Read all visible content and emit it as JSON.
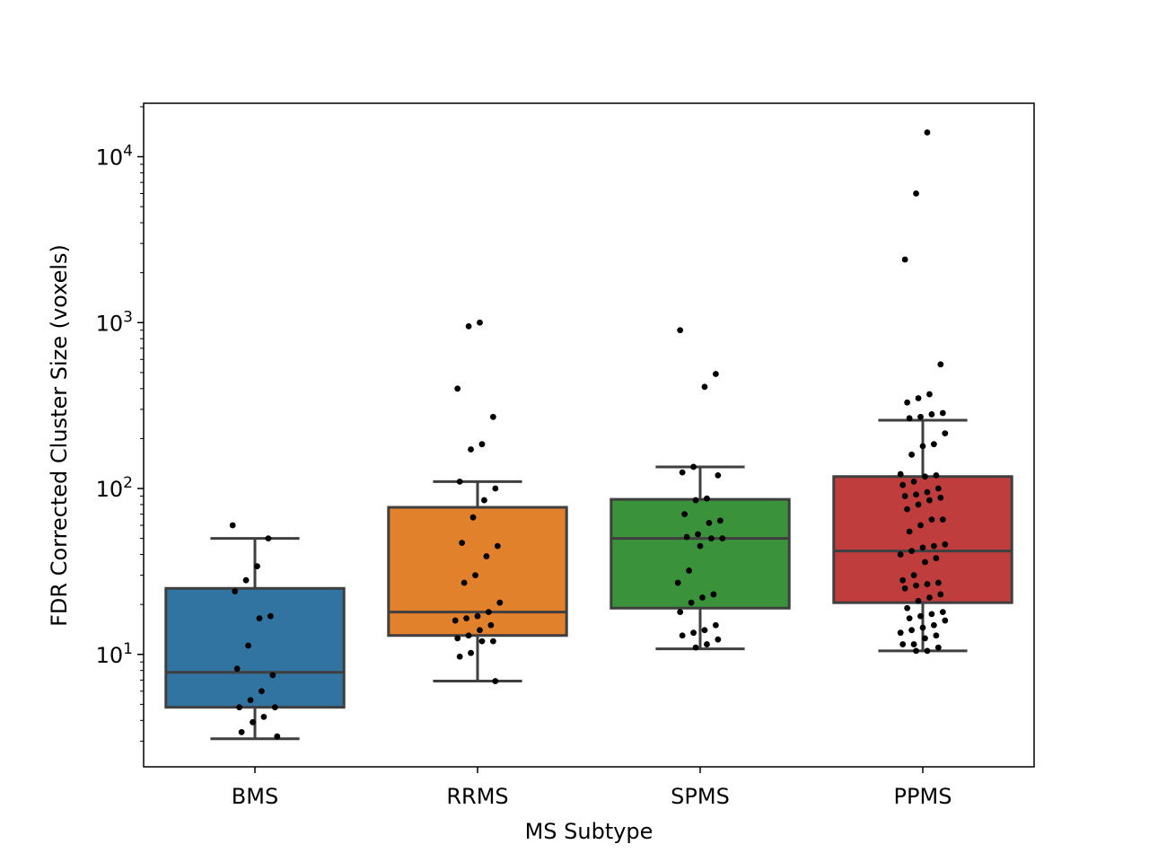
{
  "chart_data": {
    "type": "box",
    "title": "",
    "xlabel": "MS Subtype",
    "ylabel": "FDR Corrected Cluster Size (voxels)",
    "yscale": "log",
    "ylim": [
      2.1,
      21000
    ],
    "grid": false,
    "legend": "none",
    "ytick_labels": [
      {
        "value": 10,
        "base": "10",
        "exp": "1"
      },
      {
        "value": 100,
        "base": "10",
        "exp": "2"
      },
      {
        "value": 1000,
        "base": "10",
        "exp": "3"
      },
      {
        "value": 10000,
        "base": "10",
        "exp": "4"
      }
    ],
    "categories": [
      "BMS",
      "RRMS",
      "SPMS",
      "PPMS"
    ],
    "colors": [
      "#3274a1",
      "#e1812c",
      "#3a923a",
      "#c03d3e"
    ],
    "boxes": [
      {
        "name": "BMS",
        "whislo": 3.1,
        "q1": 4.8,
        "med": 7.8,
        "q3": 25,
        "whishi": 50
      },
      {
        "name": "RRMS",
        "whislo": 6.9,
        "q1": 13,
        "med": 18,
        "q3": 77,
        "whishi": 110
      },
      {
        "name": "SPMS",
        "whislo": 10.8,
        "q1": 19,
        "med": 50,
        "q3": 86,
        "whishi": 135
      },
      {
        "name": "PPMS",
        "whislo": 10.5,
        "q1": 20.5,
        "med": 42,
        "q3": 118,
        "whishi": 258
      }
    ],
    "points": [
      {
        "cat": "BMS",
        "values": [
          60,
          50,
          34,
          28,
          24,
          17,
          16.5,
          11.3,
          8.2,
          7.5,
          6.0,
          5.3,
          4.8,
          4.8,
          4.2,
          3.9,
          3.4,
          3.2
        ]
      },
      {
        "cat": "RRMS",
        "values": [
          1000,
          950,
          400,
          270,
          185,
          172,
          110,
          100,
          85,
          67,
          47,
          45,
          39,
          30,
          27,
          20.5,
          18,
          17,
          16.5,
          16,
          15,
          14,
          13,
          12.5,
          12,
          12,
          10.2,
          9.7,
          6.9
        ]
      },
      {
        "cat": "SPMS",
        "values": [
          900,
          490,
          410,
          135,
          125,
          120,
          87,
          85,
          70,
          64,
          62,
          53,
          51,
          50,
          50,
          45,
          32,
          27,
          23,
          22,
          20.5,
          18,
          15,
          14,
          13.5,
          13,
          12.3,
          11.5,
          11
        ]
      },
      {
        "cat": "PPMS",
        "values": [
          14000,
          6000,
          2400,
          560,
          370,
          350,
          330,
          285,
          280,
          270,
          265,
          215,
          185,
          180,
          160,
          122,
          120,
          118,
          110,
          105,
          100,
          95,
          92,
          90,
          88,
          85,
          80,
          75,
          65,
          65,
          60,
          55,
          46,
          45,
          44,
          42,
          40,
          38,
          36,
          30,
          28,
          27,
          26.5,
          26,
          25,
          23,
          22,
          21,
          19,
          18,
          17.5,
          17,
          16.5,
          16,
          15,
          14.5,
          14,
          13.5,
          13,
          12.5,
          11.5,
          11.5,
          11,
          10.5,
          10.5
        ]
      }
    ]
  }
}
